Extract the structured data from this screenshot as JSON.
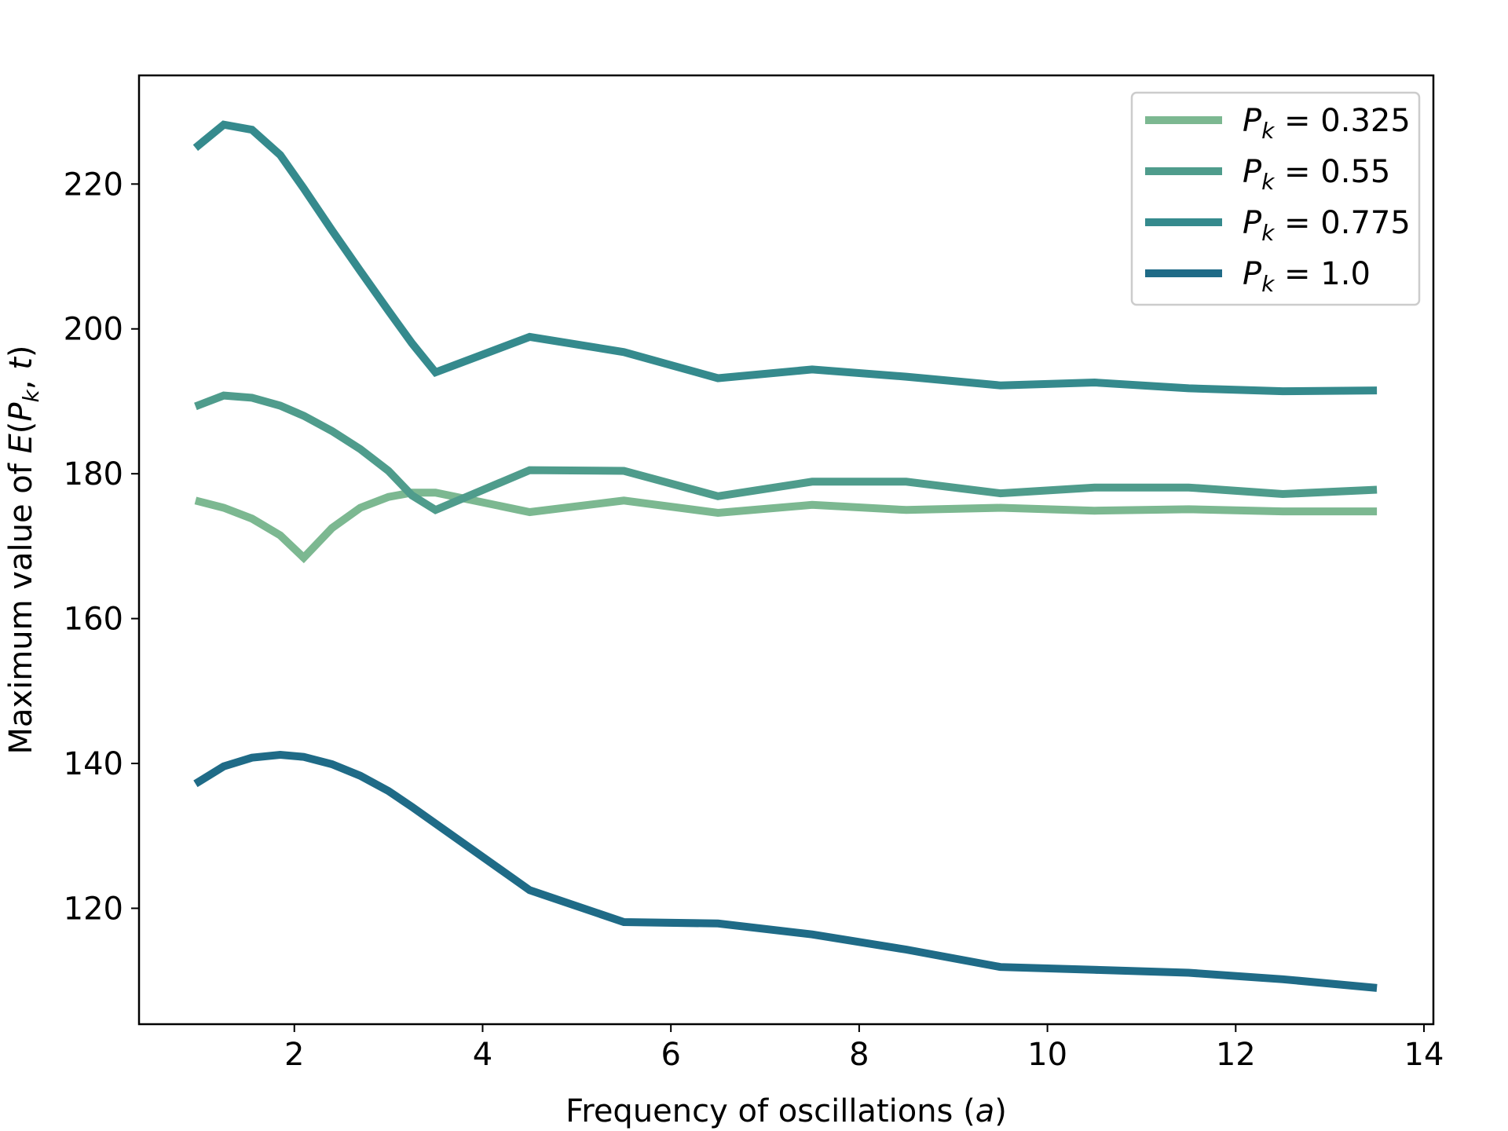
{
  "chart_data": {
    "type": "line",
    "title": "",
    "xlabel": {
      "prefix": "Frequency of oscillations (",
      "var": "a",
      "suffix": ")"
    },
    "ylabel": {
      "prefix": "Maximum value of ",
      "var": "E",
      "open": "(",
      "sub_var": "P",
      "sub_index": "k",
      "sep": ", ",
      "var2": "t",
      "close": ")"
    },
    "xlim": [
      0.35,
      14.1
    ],
    "ylim": [
      104,
      235
    ],
    "xticks": [
      2,
      4,
      6,
      8,
      10,
      12,
      14
    ],
    "yticks": [
      120,
      140,
      160,
      180,
      200,
      220
    ],
    "grid": false,
    "legend_position": "top-right",
    "series": [
      {
        "name": "P_k = 0.325",
        "legend": {
          "var": "P",
          "sub": "k",
          "rest": " = 0.325"
        },
        "color": "#7cb891",
        "x": [
          0.95,
          1.25,
          1.55,
          1.85,
          2.1,
          2.4,
          2.7,
          3.0,
          3.25,
          3.5,
          4.5,
          5.5,
          6.5,
          7.5,
          8.5,
          9.5,
          10.5,
          11.5,
          12.5,
          13.5
        ],
        "y": [
          176.3,
          175.3,
          173.8,
          171.5,
          168.4,
          172.5,
          175.3,
          176.8,
          177.4,
          177.4,
          174.7,
          176.3,
          174.6,
          175.7,
          175.0,
          175.3,
          174.9,
          175.1,
          174.8,
          174.8
        ]
      },
      {
        "name": "P_k = 0.55",
        "legend": {
          "var": "P",
          "sub": "k",
          "rest": " = 0.55"
        },
        "color": "#4f9c8c",
        "x": [
          0.95,
          1.25,
          1.55,
          1.85,
          2.1,
          2.4,
          2.7,
          3.0,
          3.25,
          3.5,
          4.5,
          5.5,
          6.5,
          7.5,
          8.5,
          9.5,
          10.5,
          11.5,
          12.5,
          13.5
        ],
        "y": [
          189.3,
          190.8,
          190.5,
          189.4,
          188.0,
          185.9,
          183.4,
          180.4,
          177.0,
          175.0,
          180.5,
          180.4,
          176.9,
          178.9,
          178.9,
          177.3,
          178.1,
          178.1,
          177.2,
          177.8
        ]
      },
      {
        "name": "P_k = 0.775",
        "legend": {
          "var": "P",
          "sub": "k",
          "rest": " = 0.775"
        },
        "color": "#358a8d",
        "x": [
          0.95,
          1.25,
          1.55,
          1.85,
          2.1,
          2.4,
          2.7,
          3.0,
          3.25,
          3.5,
          4.5,
          5.5,
          6.5,
          7.5,
          8.5,
          9.5,
          10.5,
          11.5,
          12.5,
          13.5
        ],
        "y": [
          225.0,
          228.2,
          227.5,
          224.0,
          219.4,
          213.6,
          208.0,
          202.5,
          198.0,
          194.0,
          198.9,
          196.8,
          193.2,
          194.4,
          193.4,
          192.2,
          192.6,
          191.8,
          191.4,
          191.5
        ]
      },
      {
        "name": "P_k = 1.0",
        "legend": {
          "var": "P",
          "sub": "k",
          "rest": " = 1.0"
        },
        "color": "#1f6b87",
        "x": [
          0.95,
          1.25,
          1.55,
          1.85,
          2.1,
          2.4,
          2.7,
          3.0,
          3.25,
          3.5,
          4.5,
          5.5,
          6.5,
          7.5,
          8.5,
          9.5,
          10.5,
          11.5,
          12.5,
          13.5
        ],
        "y": [
          137.2,
          139.6,
          140.8,
          141.2,
          140.9,
          139.9,
          138.3,
          136.2,
          134.0,
          131.7,
          122.5,
          118.1,
          117.9,
          116.4,
          114.3,
          111.9,
          111.5,
          111.1,
          110.2,
          109.0
        ]
      }
    ]
  }
}
